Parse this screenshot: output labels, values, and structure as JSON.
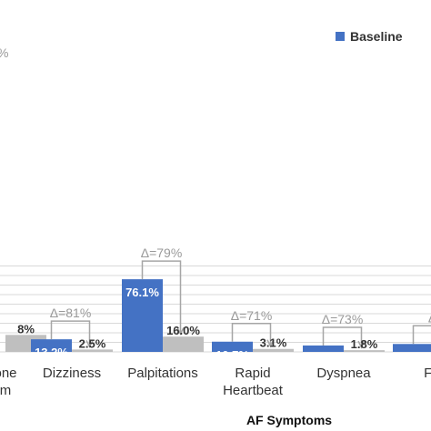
{
  "chart_data": {
    "type": "bar",
    "xlabel": "AF Symptoms",
    "ylim": [
      0,
      90
    ],
    "visible_tick_fragment": "%",
    "categories": [
      {
        "lines": [
          "one",
          "m"
        ]
      },
      {
        "lines": [
          "Dizziness"
        ]
      },
      {
        "lines": [
          "Palpitations"
        ]
      },
      {
        "lines": [
          "Rapid",
          "Heartbeat"
        ]
      },
      {
        "lines": [
          "Dyspnea"
        ]
      },
      {
        "lines": [
          "Fat"
        ]
      }
    ],
    "series": [
      {
        "name": "Baseline",
        "values": [
          null,
          13.2,
          76.1,
          10.7,
          6.7,
          8.3
        ],
        "labels": [
          "",
          "13.2%",
          "76.1%",
          "10.7%",
          "6.7%",
          "8.3%"
        ]
      },
      {
        "values": [
          17.8,
          2.5,
          16.0,
          3.1,
          1.8,
          null
        ],
        "labels": [
          "8%",
          "2.5%",
          "16.0%",
          "3.1%",
          "1.8%",
          ""
        ]
      }
    ],
    "deltas": [
      "",
      "Δ=81%",
      "Δ=79%",
      "Δ=71%",
      "Δ=73%",
      "Δ"
    ],
    "legend_position": "top-right",
    "colors": {
      "baseline": "#4472c4",
      "followup": "#bfbfbf",
      "grid": "#d9d9d9",
      "bracket": "#a6a6a6"
    }
  }
}
